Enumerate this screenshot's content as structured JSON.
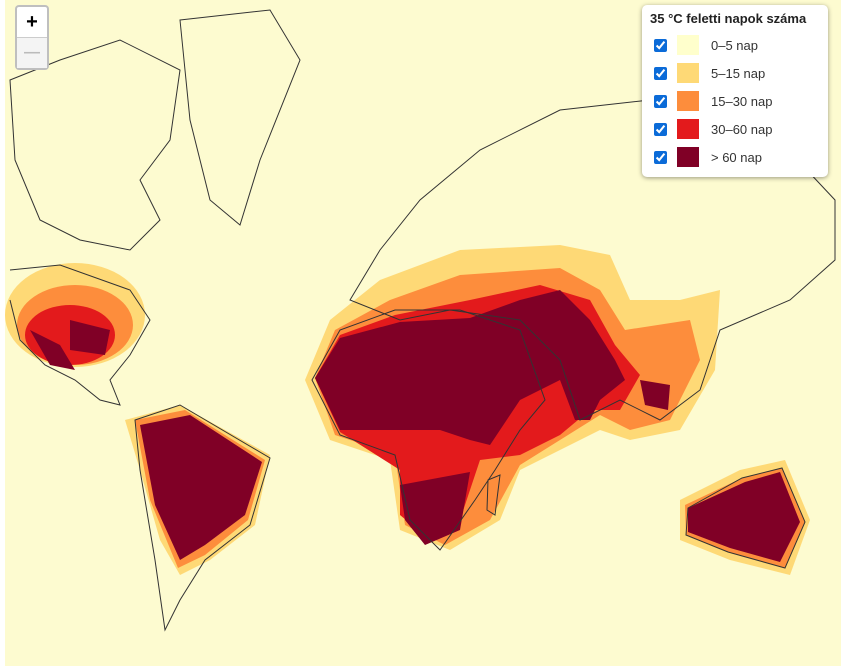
{
  "zoom_controls": {
    "zoom_in": "+",
    "zoom_out": "—"
  },
  "legend": {
    "title": "35 °C feletti napok száma",
    "items": [
      {
        "label": "0–5 nap",
        "color": "#ffffcc",
        "checked": true
      },
      {
        "label": "5–15 nap",
        "color": "#fed976",
        "checked": true
      },
      {
        "label": "15–30 nap",
        "color": "#fd8d3c",
        "checked": true
      },
      {
        "label": "30–60 nap",
        "color": "#e31a1c",
        "checked": true
      },
      {
        "label": "> 60 nap",
        "color": "#800026",
        "checked": true
      }
    ]
  }
}
